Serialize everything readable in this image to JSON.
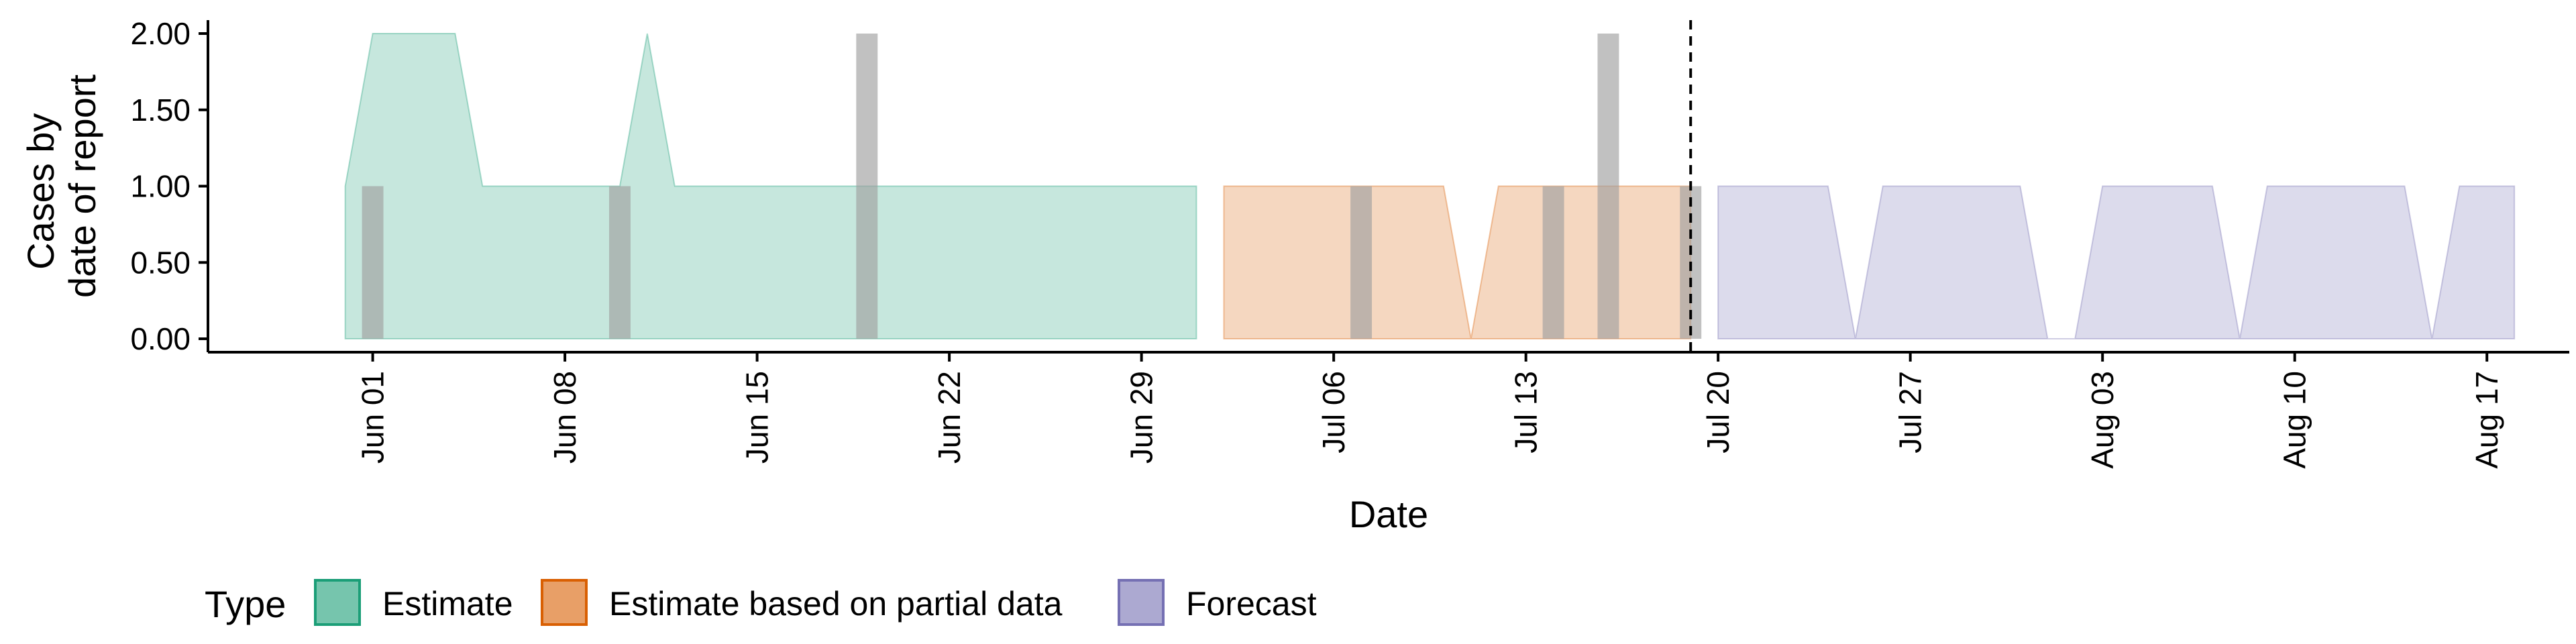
{
  "chart_data": {
    "type": "area",
    "xlabel": "Date",
    "ylabel_lines": [
      "Cases by",
      "date of report"
    ],
    "ylim": [
      0,
      2
    ],
    "y_ticks": [
      0,
      0.5,
      1,
      1.5,
      2
    ],
    "y_tick_labels": [
      "0.00",
      "0.50",
      "1.00",
      "1.50",
      "2.00"
    ],
    "x_ticks": [
      "2020-06-01",
      "2020-06-08",
      "2020-06-15",
      "2020-06-22",
      "2020-06-29",
      "2020-07-06",
      "2020-07-13",
      "2020-07-20",
      "2020-07-27",
      "2020-08-03",
      "2020-08-10",
      "2020-08-17"
    ],
    "x_tick_labels": [
      "Jun 01",
      "Jun 08",
      "Jun 15",
      "Jun 22",
      "Jun 29",
      "Jul 06",
      "Jul 13",
      "Jul 20",
      "Jul 27",
      "Aug 03",
      "Aug 10",
      "Aug 17"
    ],
    "xlim": [
      "2020-05-26",
      "2020-08-20"
    ],
    "vline_date": "2020-07-19",
    "legend_position": "bottom",
    "legend_title": "Type",
    "series": [
      {
        "name": "Estimate",
        "color": "#1b9e77",
        "points": [
          [
            "2020-05-31",
            1
          ],
          [
            "2020-06-01",
            2
          ],
          [
            "2020-06-02",
            2
          ],
          [
            "2020-06-03",
            2
          ],
          [
            "2020-06-04",
            2
          ],
          [
            "2020-06-05",
            1
          ],
          [
            "2020-06-06",
            1
          ],
          [
            "2020-06-07",
            1
          ],
          [
            "2020-06-08",
            1
          ],
          [
            "2020-06-09",
            1
          ],
          [
            "2020-06-10",
            1
          ],
          [
            "2020-06-11",
            2
          ],
          [
            "2020-06-12",
            1
          ],
          [
            "2020-06-13",
            1
          ],
          [
            "2020-06-14",
            1
          ],
          [
            "2020-06-15",
            1
          ],
          [
            "2020-06-16",
            1
          ],
          [
            "2020-06-17",
            1
          ],
          [
            "2020-06-18",
            1
          ],
          [
            "2020-06-19",
            1
          ],
          [
            "2020-06-20",
            1
          ],
          [
            "2020-06-21",
            1
          ],
          [
            "2020-06-22",
            1
          ],
          [
            "2020-06-23",
            1
          ],
          [
            "2020-06-24",
            1
          ],
          [
            "2020-06-25",
            1
          ],
          [
            "2020-06-26",
            1
          ],
          [
            "2020-06-27",
            1
          ],
          [
            "2020-06-28",
            1
          ],
          [
            "2020-06-29",
            1
          ],
          [
            "2020-06-30",
            1
          ],
          [
            "2020-07-01",
            1
          ]
        ]
      },
      {
        "name": "Estimate based on partial data",
        "color": "#d95f02",
        "points": [
          [
            "2020-07-02",
            1
          ],
          [
            "2020-07-03",
            1
          ],
          [
            "2020-07-04",
            1
          ],
          [
            "2020-07-05",
            1
          ],
          [
            "2020-07-06",
            1
          ],
          [
            "2020-07-07",
            1
          ],
          [
            "2020-07-08",
            1
          ],
          [
            "2020-07-09",
            1
          ],
          [
            "2020-07-10",
            1
          ],
          [
            "2020-07-11",
            0
          ],
          [
            "2020-07-12",
            1
          ],
          [
            "2020-07-13",
            1
          ],
          [
            "2020-07-14",
            1
          ],
          [
            "2020-07-15",
            1
          ],
          [
            "2020-07-16",
            1
          ],
          [
            "2020-07-17",
            1
          ],
          [
            "2020-07-18",
            1
          ],
          [
            "2020-07-19",
            1
          ]
        ]
      },
      {
        "name": "Forecast",
        "color": "#7570b3",
        "points": [
          [
            "2020-07-20",
            1
          ],
          [
            "2020-07-21",
            1
          ],
          [
            "2020-07-22",
            1
          ],
          [
            "2020-07-23",
            1
          ],
          [
            "2020-07-24",
            1
          ],
          [
            "2020-07-25",
            0
          ],
          [
            "2020-07-26",
            1
          ],
          [
            "2020-07-27",
            1
          ],
          [
            "2020-07-28",
            1
          ],
          [
            "2020-07-29",
            1
          ],
          [
            "2020-07-30",
            1
          ],
          [
            "2020-07-31",
            1
          ],
          [
            "2020-08-01",
            0
          ],
          [
            "2020-08-02",
            0
          ],
          [
            "2020-08-03",
            1
          ],
          [
            "2020-08-04",
            1
          ],
          [
            "2020-08-05",
            1
          ],
          [
            "2020-08-06",
            1
          ],
          [
            "2020-08-07",
            1
          ],
          [
            "2020-08-08",
            0
          ],
          [
            "2020-08-09",
            1
          ],
          [
            "2020-08-10",
            1
          ],
          [
            "2020-08-11",
            1
          ],
          [
            "2020-08-12",
            1
          ],
          [
            "2020-08-13",
            1
          ],
          [
            "2020-08-14",
            1
          ],
          [
            "2020-08-15",
            0
          ],
          [
            "2020-08-16",
            1
          ],
          [
            "2020-08-17",
            1
          ],
          [
            "2020-08-18",
            1
          ]
        ]
      }
    ],
    "bars": {
      "color": "#a0a0a0",
      "points": [
        [
          "2020-06-01",
          1
        ],
        [
          "2020-06-10",
          1
        ],
        [
          "2020-06-19",
          2
        ],
        [
          "2020-07-07",
          1
        ],
        [
          "2020-07-14",
          1
        ],
        [
          "2020-07-16",
          2
        ],
        [
          "2020-07-19",
          1
        ]
      ]
    }
  }
}
